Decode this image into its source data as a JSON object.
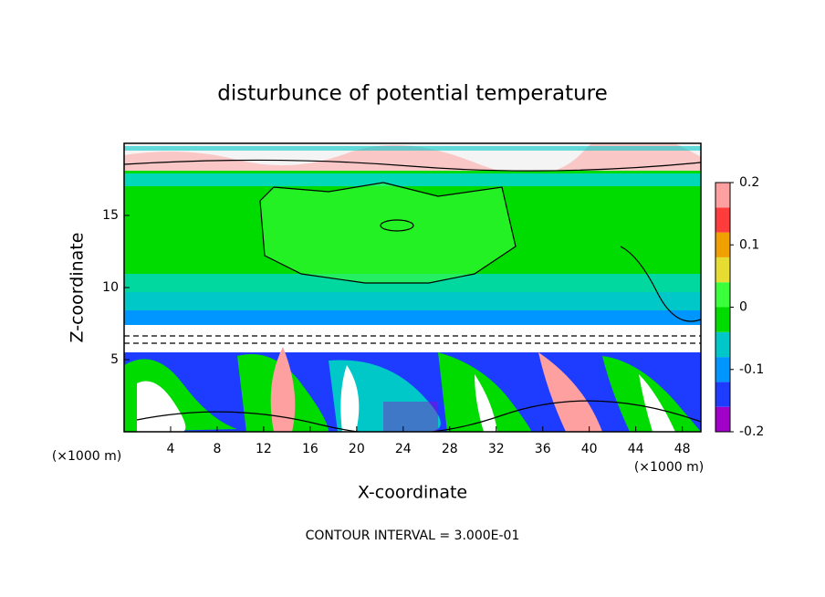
{
  "chart_data": {
    "type": "contour",
    "title": "disturbunce of potential temperature",
    "x_label": "X-coordinate",
    "y_label": "Z-coordinate",
    "x_unit": "(×1000 m)",
    "xlim": [
      0,
      49.6
    ],
    "xticks": [
      4,
      8,
      12,
      16,
      20,
      24,
      28,
      32,
      36,
      40,
      44,
      48
    ],
    "ylim": [
      0,
      20
    ],
    "yticks": [
      5,
      10,
      15
    ],
    "colorbar": {
      "lim": [
        -0.2,
        0.2
      ],
      "ticks": [
        -0.2,
        -0.1,
        0,
        0.1,
        0.2
      ],
      "colors": [
        "#a000c8",
        "#1e3cff",
        "#0096ff",
        "#00c8c8",
        "#00dc00",
        "#3cff3c",
        "#e6dc32",
        "#f0a000",
        "#ff3c3c",
        "#ffa0a0"
      ]
    },
    "annotation": "CONTOUR INTERVAL = 3.000E-01"
  }
}
